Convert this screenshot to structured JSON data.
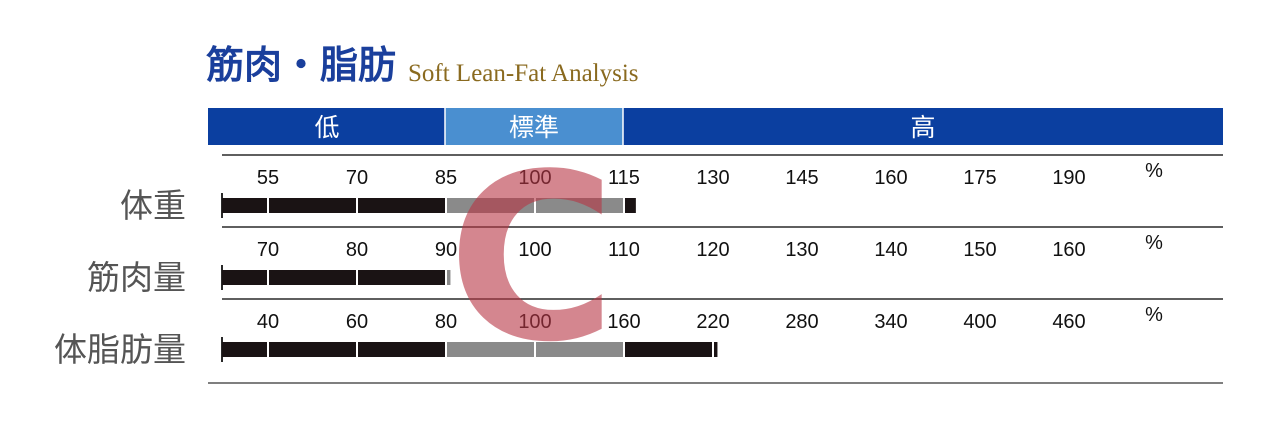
{
  "title": {
    "jp": "筋肉・脂肪",
    "en": "Soft Lean-Fat Analysis"
  },
  "colors": {
    "band_dark": "#0b3fa0",
    "band_light": "#4a8fd0",
    "bar_dark": "#1a1314",
    "bar_gray": "#8a8a8a",
    "watermark": "#b83545"
  },
  "watermark": "C",
  "chart_data": {
    "type": "bar",
    "ranges": [
      "低",
      "標準",
      "高"
    ],
    "unit": "%",
    "rows": [
      {
        "label": "体重",
        "ticks": [
          "55",
          "70",
          "85",
          "100",
          "115",
          "130",
          "145",
          "160",
          "175",
          "190"
        ],
        "value": 117
      },
      {
        "label": "筋肉量",
        "ticks": [
          "70",
          "80",
          "90",
          "100",
          "110",
          "120",
          "130",
          "140",
          "150",
          "160"
        ],
        "value": 90.5
      },
      {
        "label": "体脂肪量",
        "ticks": [
          "40",
          "60",
          "80",
          "100",
          "160",
          "220",
          "280",
          "340",
          "400",
          "460"
        ],
        "value": 223
      }
    ]
  }
}
